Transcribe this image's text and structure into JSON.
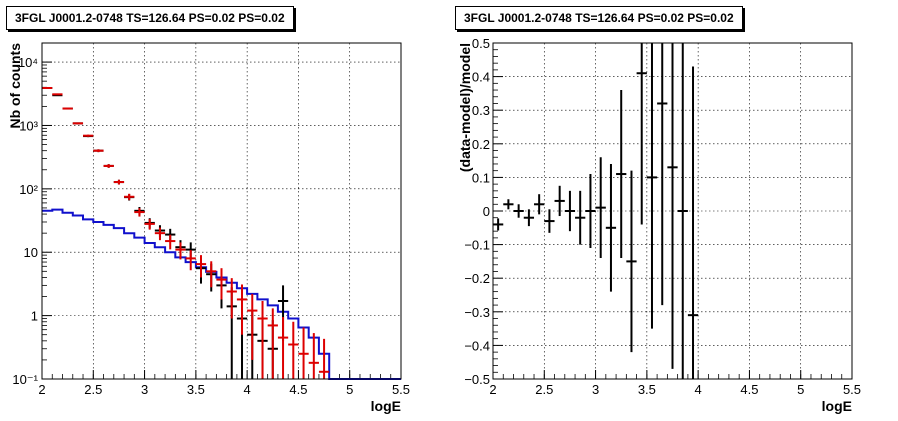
{
  "chart_data": [
    {
      "type": "histogram",
      "title": "3FGL J0001.2-0748 TS=126.64 PS=0.02 PS=0.02",
      "xlabel": "logE",
      "ylabel": "Nb of counts",
      "xlim": [
        2,
        5.5
      ],
      "ylim": [
        0.1,
        20000
      ],
      "log_y": true,
      "grid": true,
      "x_ticks": [
        "2",
        "2.5",
        "3",
        "3.5",
        "4",
        "4.5",
        "5",
        "5.5"
      ],
      "y_ticks": [
        "10⁻¹",
        "1",
        "10",
        "10²",
        "10³",
        "10⁴"
      ],
      "series": [
        {
          "color": "#1010cc",
          "style": "step",
          "x": [
            2.05,
            2.15,
            2.25,
            2.35,
            2.45,
            2.55,
            2.65,
            2.75,
            2.85,
            2.95,
            3.05,
            3.15,
            3.25,
            3.35,
            3.45,
            3.55,
            3.65,
            3.75,
            3.85,
            3.95,
            4.05,
            4.15,
            4.25,
            4.35,
            4.45,
            4.55,
            4.65,
            4.75,
            4.85,
            4.95,
            5.05,
            5.15,
            5.25,
            5.35,
            5.45
          ],
          "values": [
            45,
            47,
            42,
            38,
            33,
            30,
            27,
            24,
            20,
            17,
            14,
            12,
            10,
            8.3,
            7.0,
            5.8,
            4.9,
            4.0,
            3.3,
            2.7,
            2.2,
            1.8,
            1.45,
            1.15,
            0.9,
            0.65,
            0.45,
            0.25,
            0.1,
            0.1,
            0.1,
            0.1,
            0.1,
            0.1,
            0.1
          ]
        },
        {
          "color": "#000000",
          "style": "errorbar",
          "x": [
            2.05,
            2.15,
            2.25,
            2.35,
            2.45,
            2.55,
            2.65,
            2.75,
            2.85,
            2.95,
            3.05,
            3.15,
            3.25,
            3.35,
            3.45,
            3.55,
            3.65,
            3.75,
            3.85,
            3.95,
            4.05,
            4.15,
            4.25,
            4.35
          ],
          "values": [
            3900,
            3000,
            1850,
            1080,
            680,
            400,
            230,
            128,
            74,
            45,
            29,
            22,
            19,
            12,
            11,
            5.6,
            4.5,
            3.0,
            1.4,
            0.9,
            0.5,
            0.4,
            0.3,
            1.7
          ],
          "err_low": [
            62,
            55,
            43,
            33,
            26,
            20,
            15,
            11,
            8.6,
            6.7,
            5.4,
            4.7,
            4.4,
            3.5,
            3.3,
            2.4,
            2.1,
            1.7,
            1.4,
            0.9,
            0.45,
            0.35,
            0.25,
            1.3
          ],
          "err_high": [
            62,
            55,
            43,
            33,
            26,
            20,
            15,
            11,
            8.6,
            6.7,
            5.4,
            4.7,
            4.4,
            3.5,
            3.3,
            2.4,
            2.1,
            1.7,
            1.4,
            1.0,
            0.7,
            0.6,
            0.55,
            1.3
          ]
        },
        {
          "color": "#dd0000",
          "style": "errorbar",
          "x": [
            2.05,
            2.15,
            2.25,
            2.35,
            2.45,
            2.55,
            2.65,
            2.75,
            2.85,
            2.95,
            3.05,
            3.15,
            3.25,
            3.35,
            3.45,
            3.55,
            3.65,
            3.75,
            3.85,
            3.95,
            4.05,
            4.15,
            4.25,
            4.35,
            4.45,
            4.55,
            4.65,
            4.75
          ],
          "values": [
            3900,
            3100,
            1850,
            1080,
            690,
            400,
            230,
            128,
            75,
            43,
            28,
            20,
            15,
            11,
            8,
            6.5,
            5,
            3.7,
            2.4,
            1.8,
            1.2,
            0.9,
            0.7,
            0.45,
            0.35,
            0.25,
            0.18,
            0.13
          ],
          "err_low": [
            62,
            55,
            43,
            33,
            26,
            20,
            15,
            11,
            8.6,
            6.5,
            5.3,
            4.5,
            3.9,
            3.3,
            2.8,
            2.5,
            2.2,
            1.9,
            1.5,
            1.3,
            1.0,
            0.8,
            0.6,
            0.4,
            0.3,
            0.2,
            0.15,
            0.1
          ],
          "err_high": [
            62,
            55,
            43,
            33,
            26,
            20,
            15,
            11,
            8.6,
            6.5,
            5.3,
            4.5,
            3.9,
            3.3,
            2.8,
            2.5,
            2.2,
            1.9,
            1.5,
            1.3,
            1.0,
            0.8,
            0.6,
            0.5,
            0.45,
            0.4,
            0.35,
            0.3
          ]
        }
      ]
    },
    {
      "type": "scatter",
      "title": "3FGL J0001.2-0748 TS=126.64 PS=0.02 PS=0.02",
      "xlabel": "logE",
      "ylabel": "(data-model)/model",
      "xlim": [
        2,
        5.5
      ],
      "ylim": [
        -0.5,
        0.5
      ],
      "grid": true,
      "x_ticks": [
        "2",
        "2.5",
        "3",
        "3.5",
        "4",
        "4.5",
        "5",
        "5.5"
      ],
      "y_ticks": [
        "−0.5",
        "−0.4",
        "−0.3",
        "−0.2",
        "−0.1",
        "0",
        "0.1",
        "0.2",
        "0.3",
        "0.4",
        "0.5"
      ],
      "series": [
        {
          "color": "#000000",
          "x": [
            2.05,
            2.15,
            2.25,
            2.35,
            2.45,
            2.55,
            2.65,
            2.75,
            2.85,
            2.95,
            3.05,
            3.15,
            3.25,
            3.35,
            3.45,
            3.55,
            3.65,
            3.75,
            3.85,
            3.95
          ],
          "y": [
            -0.04,
            0.02,
            0.0,
            -0.02,
            0.02,
            -0.03,
            0.03,
            0.0,
            -0.02,
            0.0,
            0.01,
            -0.05,
            0.11,
            -0.15,
            0.41,
            0.1,
            0.32,
            0.13,
            0.0,
            -0.31
          ],
          "err": [
            0.018,
            0.015,
            0.02,
            0.025,
            0.03,
            0.035,
            0.045,
            0.06,
            0.08,
            0.11,
            0.15,
            0.19,
            0.25,
            0.27,
            0.45,
            0.45,
            0.6,
            0.6,
            0.7,
            0.74
          ]
        }
      ]
    }
  ]
}
